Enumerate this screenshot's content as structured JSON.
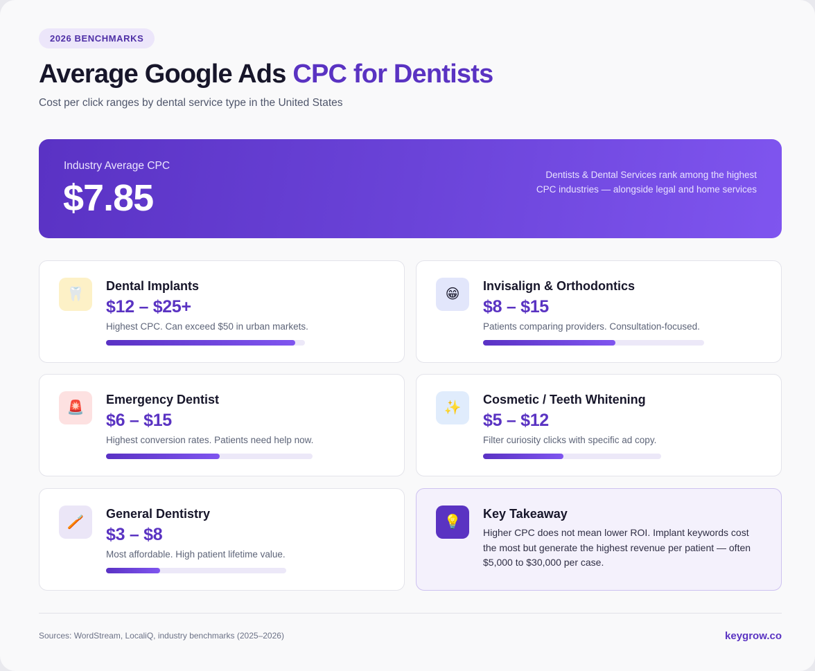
{
  "badge": "2026 BENCHMARKS",
  "title": {
    "main": "Average Google Ads ",
    "accent": "CPC for Dentists"
  },
  "subtitle": "Cost per click ranges by dental service type in the United States",
  "hero": {
    "label": "Industry Average CPC",
    "value": "$7.85",
    "note": "Dentists & Dental Services rank among the highest CPC industries — alongside legal and home services"
  },
  "cards": [
    {
      "title": "Dental Implants",
      "range": "$12 – $25+",
      "desc": "Highest CPC. Can exceed $50 in urban markets.",
      "icon": "tooth-icon",
      "glyph": "🦷",
      "icon_bg": "#fdf1c7",
      "bar_fill": 0.95
    },
    {
      "title": "Invisalign & Orthodontics",
      "range": "$8 – $15",
      "desc": "Patients comparing providers. Consultation-focused.",
      "icon": "grinning-face-icon",
      "glyph": "😁",
      "icon_bg": "#e2e6fb",
      "bar_fill": 0.6
    },
    {
      "title": "Emergency Dentist",
      "range": "$6 – $15",
      "desc": "Highest conversion rates. Patients need help now.",
      "icon": "siren-icon",
      "glyph": "🚨",
      "icon_bg": "#fde1e1",
      "bar_fill": 0.55
    },
    {
      "title": "Cosmetic / Teeth Whitening",
      "range": "$5 – $12",
      "desc": "Filter curiosity clicks with specific ad copy.",
      "icon": "sparkles-icon",
      "glyph": "✨",
      "icon_bg": "#e0ecfc",
      "bar_fill": 0.45
    },
    {
      "title": "General Dentistry",
      "range": "$3 – $8",
      "desc": "Most affordable. High patient lifetime value.",
      "icon": "toothbrush-icon",
      "glyph": "🪥",
      "icon_bg": "#ebe6f7",
      "bar_fill": 0.3
    }
  ],
  "takeaway": {
    "title": "Key Takeaway",
    "text": "Higher CPC does not mean lower ROI. Implant keywords cost the most but generate the highest revenue per patient — often $5,000 to $30,000 per case.",
    "icon": "lightbulb-icon",
    "glyph": "💡",
    "icon_bg": "#5a33c2"
  },
  "footer": {
    "sources": "Sources: WordStream, LocaliQ, industry benchmarks (2025–2026)",
    "brand": "keygrow.co"
  },
  "colors": {
    "accent": "#5a33c2",
    "hero_gradient_start": "#5a32c4",
    "hero_gradient_end": "#7f55ef",
    "bar_track": "#ece8f8"
  }
}
